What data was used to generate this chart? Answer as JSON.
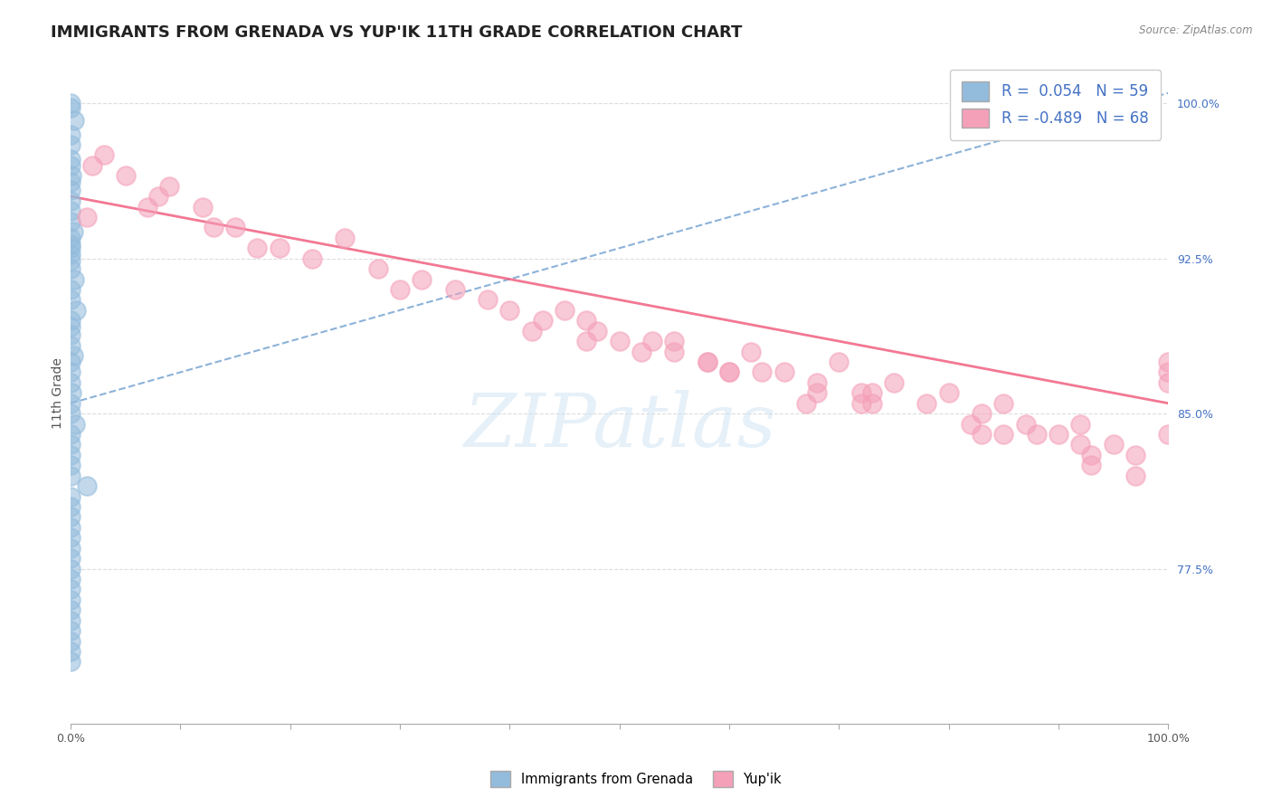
{
  "title": "IMMIGRANTS FROM GRENADA VS YUP'IK 11TH GRADE CORRELATION CHART",
  "source_text": "Source: ZipAtlas.com",
  "ylabel": "11th Grade",
  "right_ytick_values": [
    77.5,
    85.0,
    92.5,
    100.0
  ],
  "right_ytick_labels": [
    "77.5%",
    "85.0%",
    "92.5%",
    "100.0%"
  ],
  "blue_r": 0.054,
  "blue_n": 59,
  "pink_r": -0.489,
  "pink_n": 68,
  "watermark": "ZIPatlas",
  "blue_color": "#92bbdc",
  "pink_color": "#f4a0b8",
  "blue_line_color": "#6699cc",
  "pink_line_color": "#f06080",
  "grid_color": "#dddddd",
  "background_color": "#ffffff",
  "title_fontsize": 13,
  "tick_fontsize": 9,
  "axis_label_fontsize": 10,
  "xlim": [
    0,
    100
  ],
  "ylim": [
    70,
    102
  ],
  "blue_x": [
    0.0,
    0.0,
    0.3,
    0.0,
    0.0,
    0.0,
    0.0,
    0.1,
    0.0,
    0.0,
    0.0,
    0.0,
    0.0,
    0.2,
    0.0,
    0.0,
    0.0,
    0.0,
    0.0,
    0.0,
    0.3,
    0.0,
    0.0,
    0.5,
    0.0,
    0.0,
    0.0,
    0.0,
    0.2,
    0.0,
    0.0,
    0.0,
    0.1,
    0.0,
    0.0,
    0.4,
    0.0,
    0.0,
    0.0,
    0.0,
    0.0,
    1.5,
    0.0,
    0.0,
    0.0,
    0.0,
    0.0,
    0.0,
    0.0,
    0.0,
    0.0,
    0.0,
    0.0,
    0.0,
    0.0,
    0.0,
    0.0,
    0.0,
    0.0
  ],
  "blue_y": [
    100.0,
    99.8,
    99.2,
    98.5,
    98.0,
    97.3,
    97.0,
    96.5,
    96.2,
    95.8,
    95.3,
    94.8,
    94.3,
    93.8,
    93.5,
    93.2,
    93.0,
    92.7,
    92.4,
    92.0,
    91.5,
    91.0,
    90.5,
    90.0,
    89.5,
    89.2,
    88.8,
    88.3,
    87.8,
    87.5,
    87.0,
    86.5,
    86.0,
    85.5,
    85.0,
    84.5,
    84.0,
    83.5,
    83.0,
    82.5,
    82.0,
    81.5,
    81.0,
    80.5,
    80.0,
    79.5,
    79.0,
    78.5,
    78.0,
    77.5,
    77.0,
    76.5,
    76.0,
    75.5,
    75.0,
    74.5,
    74.0,
    73.5,
    73.0
  ],
  "pink_x": [
    2.0,
    5.0,
    8.0,
    1.5,
    12.0,
    15.0,
    9.0,
    19.0,
    22.0,
    25.0,
    28.0,
    3.0,
    32.0,
    35.0,
    38.0,
    40.0,
    43.0,
    45.0,
    48.0,
    50.0,
    52.0,
    55.0,
    58.0,
    60.0,
    62.0,
    65.0,
    68.0,
    70.0,
    72.0,
    75.0,
    17.0,
    78.0,
    80.0,
    83.0,
    85.0,
    87.0,
    90.0,
    92.0,
    95.0,
    97.0,
    100.0,
    100.0,
    100.0,
    7.0,
    13.0,
    47.0,
    55.0,
    63.0,
    68.0,
    73.0,
    82.0,
    88.0,
    93.0,
    97.0,
    100.0,
    30.0,
    42.0,
    58.0,
    73.0,
    85.0,
    92.0,
    47.0,
    60.0,
    72.0,
    83.0,
    93.0,
    53.0,
    67.0
  ],
  "pink_y": [
    97.0,
    96.5,
    95.5,
    94.5,
    95.0,
    94.0,
    96.0,
    93.0,
    92.5,
    93.5,
    92.0,
    97.5,
    91.5,
    91.0,
    90.5,
    90.0,
    89.5,
    90.0,
    89.0,
    88.5,
    88.0,
    88.5,
    87.5,
    87.0,
    88.0,
    87.0,
    86.5,
    87.5,
    86.0,
    86.5,
    93.0,
    85.5,
    86.0,
    85.0,
    85.5,
    84.5,
    84.0,
    84.5,
    83.5,
    83.0,
    87.0,
    84.0,
    86.5,
    95.0,
    94.0,
    89.5,
    88.0,
    87.0,
    86.0,
    86.0,
    84.5,
    84.0,
    83.0,
    82.0,
    87.5,
    91.0,
    89.0,
    87.5,
    85.5,
    84.0,
    83.5,
    88.5,
    87.0,
    85.5,
    84.0,
    82.5,
    88.5,
    85.5
  ],
  "pink_trend_start_x": 0,
  "pink_trend_start_y": 95.5,
  "pink_trend_end_x": 100,
  "pink_trend_end_y": 85.5,
  "blue_trend_start_x": 0,
  "blue_trend_start_y": 85.5,
  "blue_trend_end_x": 100,
  "blue_trend_end_y": 100.5
}
